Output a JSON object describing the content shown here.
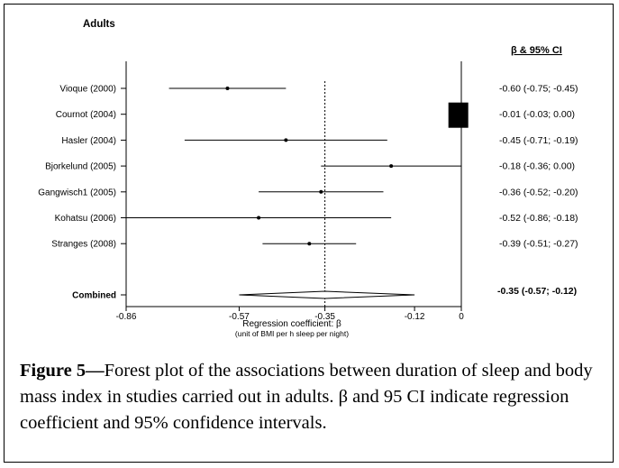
{
  "chart_data": {
    "type": "forest",
    "panel_title": "Adults",
    "right_column_header": "β & 95% CI",
    "xlabel": "Regression coefficient: β",
    "xlabel_sub": "(unit of BMI per h sleep per night)",
    "xlim": [
      -0.86,
      0
    ],
    "x_ticks": [
      {
        "value": -0.86,
        "label": "-0.86"
      },
      {
        "value": -0.57,
        "label": "-0.57"
      },
      {
        "value": -0.35,
        "label": "-0.35"
      },
      {
        "value": -0.12,
        "label": "-0.12"
      },
      {
        "value": 0,
        "label": "0"
      }
    ],
    "reference_line": -0.35,
    "studies": [
      {
        "label": "Vioque (2000)",
        "beta": -0.6,
        "lo": -0.75,
        "hi": -0.45,
        "ci_text": "-0.60 (-0.75; -0.45)"
      },
      {
        "label": "Cournot (2004)",
        "beta": -0.01,
        "lo": -0.03,
        "hi": 0.0,
        "ci_text": "-0.01 (-0.03; 0.00)"
      },
      {
        "label": "Hasler (2004)",
        "beta": -0.45,
        "lo": -0.71,
        "hi": -0.19,
        "ci_text": "-0.45 (-0.71; -0.19)"
      },
      {
        "label": "Bjorkelund (2005)",
        "beta": -0.18,
        "lo": -0.36,
        "hi": 0.0,
        "ci_text": "-0.18 (-0.36; 0.00)"
      },
      {
        "label": "Gangwisch1 (2005)",
        "beta": -0.36,
        "lo": -0.52,
        "hi": -0.2,
        "ci_text": "-0.36 (-0.52; -0.20)"
      },
      {
        "label": "Kohatsu (2006)",
        "beta": -0.52,
        "lo": -0.86,
        "hi": -0.18,
        "ci_text": "-0.52 (-0.86; -0.18)"
      },
      {
        "label": "Stranges (2008)",
        "beta": -0.39,
        "lo": -0.51,
        "hi": -0.27,
        "ci_text": "-0.39 (-0.51; -0.27)"
      }
    ],
    "combined": {
      "label": "Combined",
      "beta": -0.35,
      "lo": -0.57,
      "hi": -0.12,
      "ci_text": "-0.35 (-0.57; -0.12)"
    }
  },
  "caption": {
    "label": "Figure 5—",
    "text": "Forest plot of the associations between duration of sleep and body mass index in studies carried out in adults. β and 95 CI indicate regression coefficient and 95% confidence intervals."
  }
}
